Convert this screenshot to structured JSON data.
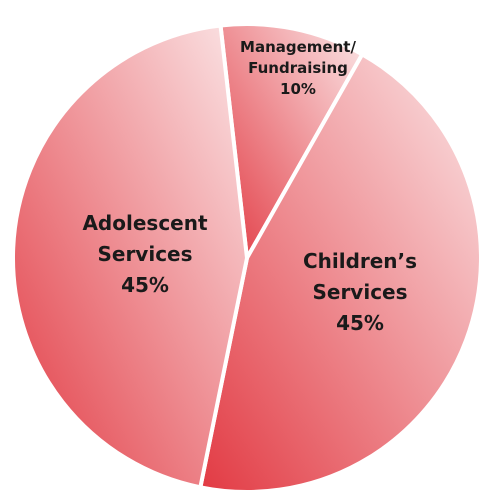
{
  "chart_data": {
    "type": "pie",
    "slices": [
      {
        "label_lines": [
          "Management/",
          "Fundraising"
        ],
        "value": 10,
        "value_label": "10%"
      },
      {
        "label_lines": [
          "Children’s",
          "Services"
        ],
        "value": 45,
        "value_label": "45%"
      },
      {
        "label_lines": [
          "Adolescent",
          "Services"
        ],
        "value": 45,
        "value_label": "45%"
      }
    ],
    "legend": "none",
    "gradient_colors": {
      "light": "#fbe6e7",
      "dark": "#e23a43"
    },
    "separator_color": "#ffffff"
  }
}
